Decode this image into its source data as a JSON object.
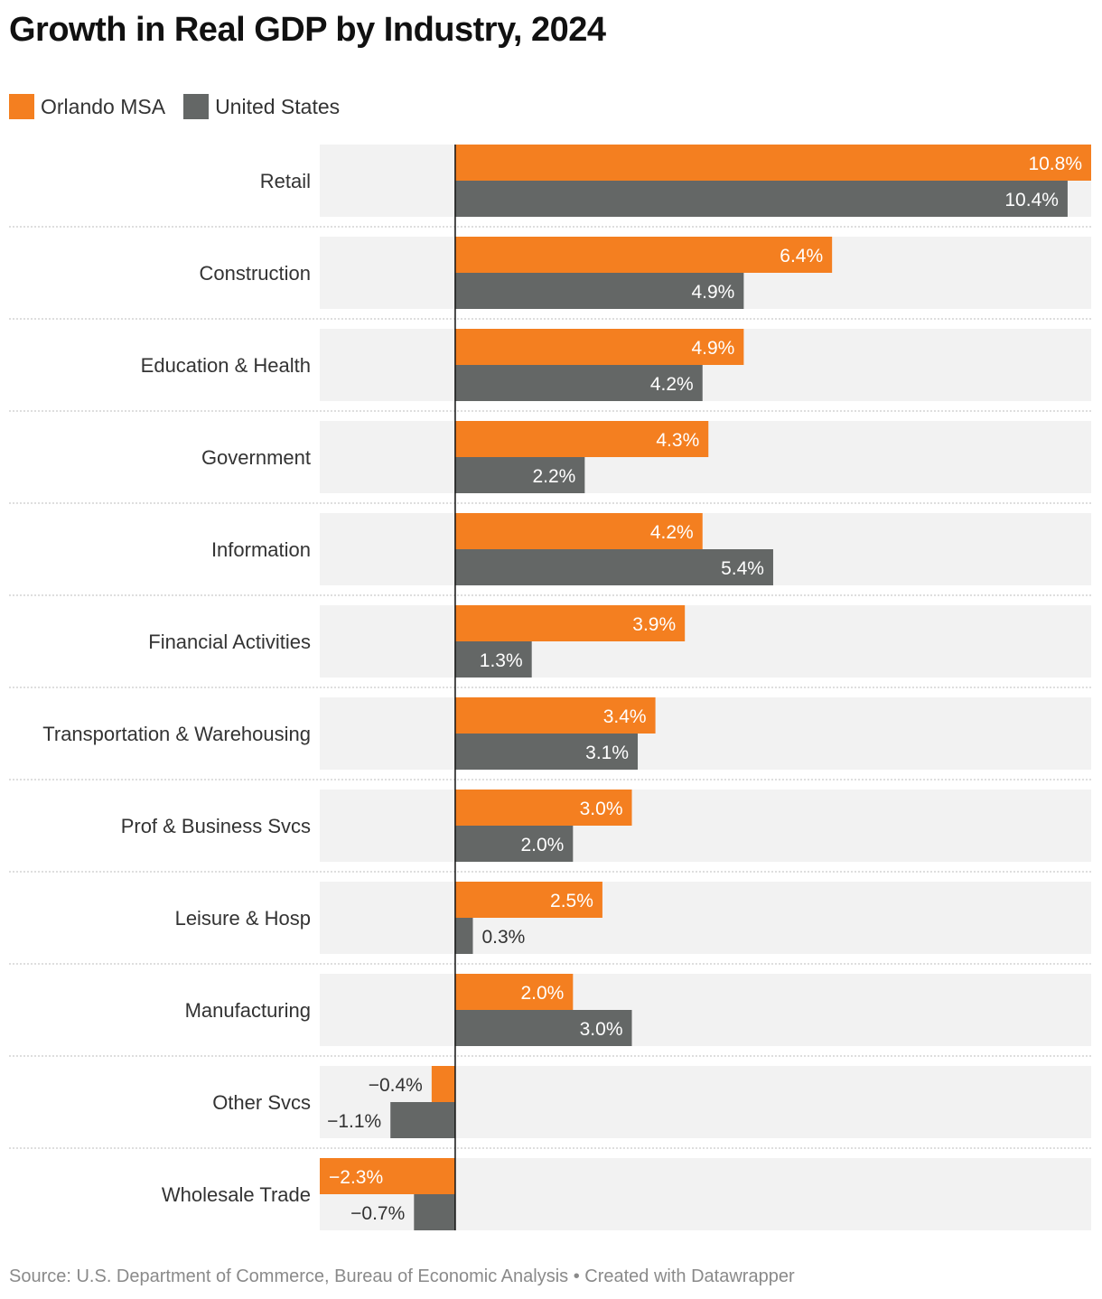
{
  "title": "Growth in Real GDP by Industry, 2024",
  "legend": [
    {
      "label": "Orlando MSA",
      "color": "#f47f20"
    },
    {
      "label": "United States",
      "color": "#646766"
    }
  ],
  "source": "Source: U.S. Department of Commerce, Bureau of Economic Analysis • Created with Datawrapper",
  "colors": {
    "orlando": "#f47f20",
    "us": "#646766",
    "row_bg": "#f2f2f2",
    "label_dark": "#333333",
    "label_light": "#ffffff"
  },
  "chart_data": {
    "type": "bar",
    "orientation": "horizontal",
    "categories": [
      "Retail",
      "Construction",
      "Education & Health",
      "Government",
      "Information",
      "Financial Activities",
      "Transportation & Warehousing",
      "Prof & Business Svcs",
      "Leisure & Hosp",
      "Manufacturing",
      "Other Svcs",
      "Wholesale Trade"
    ],
    "series": [
      {
        "name": "Orlando MSA",
        "values": [
          10.8,
          6.4,
          4.9,
          4.3,
          4.2,
          3.9,
          3.4,
          3.0,
          2.5,
          2.0,
          -0.4,
          -2.3
        ],
        "labels": [
          "10.8%",
          "6.4%",
          "4.9%",
          "4.3%",
          "4.2%",
          "3.9%",
          "3.4%",
          "3.0%",
          "2.5%",
          "2.0%",
          "−0.4%",
          "−2.3%"
        ]
      },
      {
        "name": "United States",
        "values": [
          10.4,
          4.9,
          4.2,
          2.2,
          5.4,
          1.3,
          3.1,
          2.0,
          0.3,
          3.0,
          -1.1,
          -0.7
        ],
        "labels": [
          "10.4%",
          "4.9%",
          "4.2%",
          "2.2%",
          "5.4%",
          "1.3%",
          "3.1%",
          "2.0%",
          "0.3%",
          "3.0%",
          "−1.1%",
          "−0.7%"
        ]
      }
    ],
    "xlim": [
      -2.3,
      10.8
    ],
    "title": "Growth in Real GDP by Industry, 2024",
    "xlabel": "",
    "ylabel": "",
    "legend_position": "top-left"
  }
}
